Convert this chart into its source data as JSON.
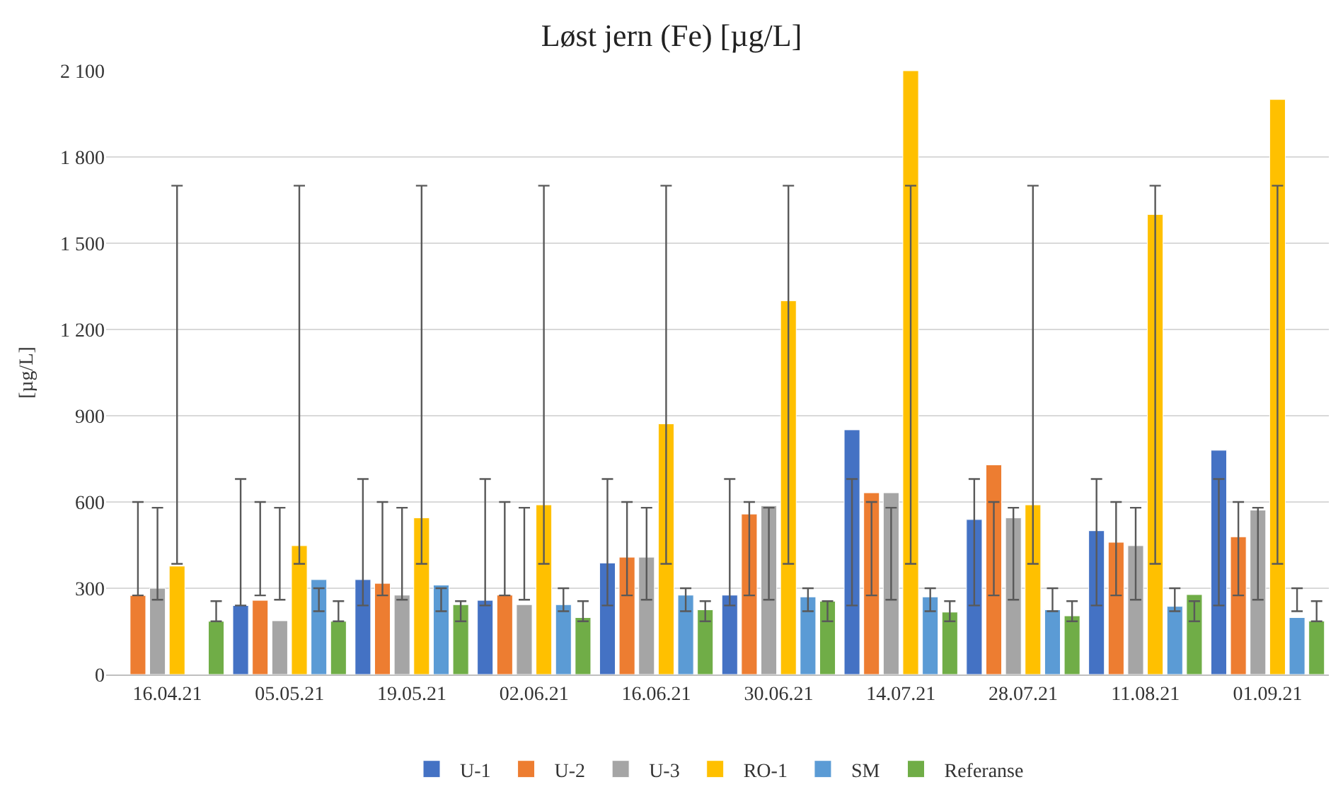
{
  "chart_data": {
    "type": "bar",
    "title": "Løst jern (Fe) [µg/L]",
    "ylabel": "[µg/L]",
    "categories": [
      "16.04.21",
      "05.05.21",
      "19.05.21",
      "02.06.21",
      "16.06.21",
      "30.06.21",
      "14.07.21",
      "28.07.21",
      "11.08.21",
      "01.09.21"
    ],
    "series": [
      {
        "name": "U-1",
        "color": "#4472c4",
        "values": [
          null,
          240,
          330,
          258,
          388,
          276,
          851,
          539,
          500,
          780
        ],
        "errors": [
          null,
          [
            240,
            680
          ],
          [
            240,
            680
          ],
          [
            240,
            680
          ],
          [
            240,
            680
          ],
          [
            240,
            680
          ],
          [
            240,
            680
          ],
          [
            240,
            680
          ],
          [
            240,
            680
          ],
          [
            240,
            680
          ]
        ]
      },
      {
        "name": "U-2",
        "color": "#ed7d31",
        "values": [
          275,
          258,
          317,
          276,
          408,
          558,
          632,
          729,
          460,
          479
        ],
        "errors": [
          [
            275,
            600
          ],
          [
            275,
            600
          ],
          [
            275,
            600
          ],
          [
            275,
            600
          ],
          [
            275,
            600
          ],
          [
            275,
            600
          ],
          [
            275,
            600
          ],
          [
            275,
            600
          ],
          [
            275,
            600
          ],
          [
            275,
            600
          ]
        ]
      },
      {
        "name": "U-3",
        "color": "#a5a5a5",
        "values": [
          300,
          187,
          276,
          243,
          408,
          587,
          632,
          545,
          448,
          572
        ],
        "errors": [
          [
            260,
            580
          ],
          [
            260,
            580
          ],
          [
            260,
            580
          ],
          [
            260,
            580
          ],
          [
            260,
            580
          ],
          [
            260,
            580
          ],
          [
            260,
            580
          ],
          [
            260,
            580
          ],
          [
            260,
            580
          ],
          [
            260,
            580
          ]
        ]
      },
      {
        "name": "RO-1",
        "color": "#ffc000",
        "values": [
          377,
          448,
          545,
          590,
          872,
          1300,
          2100,
          590,
          1600,
          2000
        ],
        "errors": [
          [
            385,
            1700
          ],
          [
            385,
            1700
          ],
          [
            385,
            1700
          ],
          [
            385,
            1700
          ],
          [
            385,
            1700
          ],
          [
            385,
            1700
          ],
          [
            385,
            1700
          ],
          [
            385,
            1700
          ],
          [
            385,
            1700
          ],
          [
            385,
            1700
          ]
        ]
      },
      {
        "name": "SM",
        "color": "#5b9bd5",
        "values": [
          null,
          330,
          311,
          243,
          276,
          270,
          270,
          225,
          237,
          198
        ],
        "errors": [
          null,
          [
            220,
            300
          ],
          [
            220,
            300
          ],
          [
            220,
            300
          ],
          [
            220,
            300
          ],
          [
            220,
            300
          ],
          [
            220,
            300
          ],
          [
            220,
            300
          ],
          [
            220,
            300
          ],
          [
            220,
            300
          ]
        ]
      },
      {
        "name": "Referanse",
        "color": "#70ad47",
        "values": [
          185,
          185,
          243,
          198,
          225,
          255,
          217,
          204,
          278,
          186
        ],
        "errors": [
          [
            185,
            255
          ],
          [
            185,
            255
          ],
          [
            185,
            255
          ],
          [
            185,
            255
          ],
          [
            185,
            255
          ],
          [
            185,
            255
          ],
          [
            185,
            255
          ],
          [
            185,
            255
          ],
          [
            185,
            255
          ],
          [
            185,
            255
          ]
        ]
      }
    ],
    "ylim": [
      0,
      2100
    ],
    "yticks": [
      0,
      300,
      600,
      900,
      {
        "value": 1200,
        "label": "1 200"
      },
      {
        "value": 1500,
        "label": "1 500"
      },
      {
        "value": 1800,
        "label": "1 800"
      },
      {
        "value": 2100,
        "label": "2 100"
      }
    ],
    "grid": "y",
    "legend": "bottom"
  }
}
